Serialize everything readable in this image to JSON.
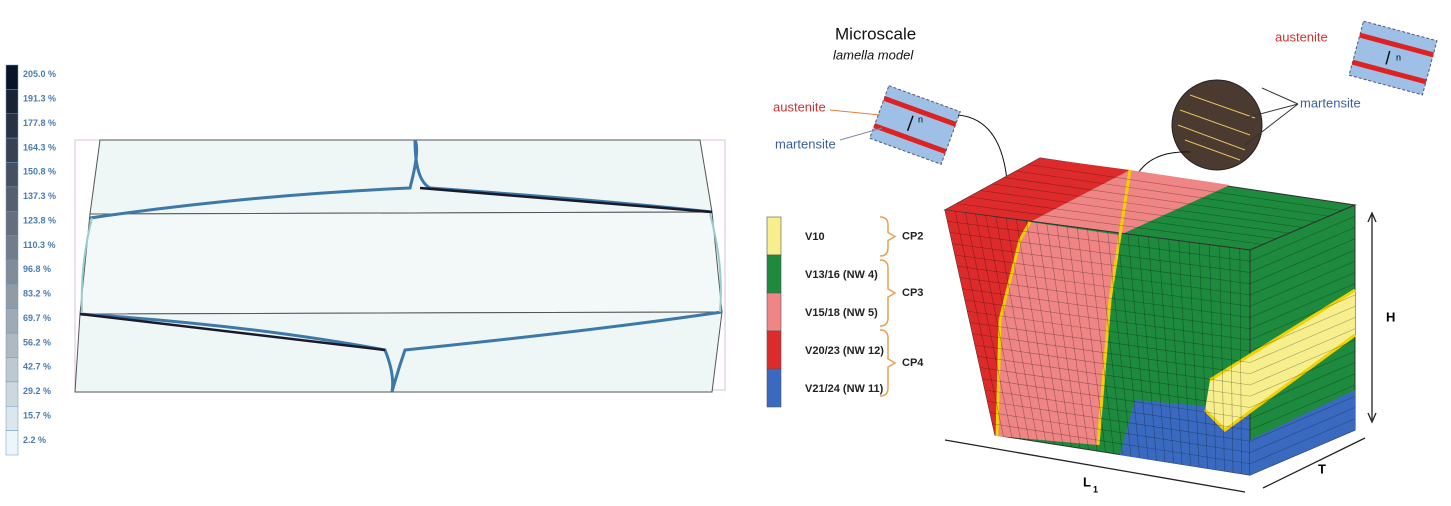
{
  "colorbar": {
    "labels": [
      "205.0 %",
      "191.3 %",
      "177.8 %",
      "164.3 %",
      "150.8 %",
      "137.3 %",
      "123.8 %",
      "110.3 %",
      "96.8 %",
      "83.2 %",
      "69.7 %",
      "56.2 %",
      "42.7 %",
      "29.2 %",
      "15.7 %",
      "2.2 %"
    ]
  },
  "microscale": {
    "title": "Microscale",
    "subtitle": "lamella model",
    "austenite": "austenite",
    "martensite": "martensite",
    "normal": "n"
  },
  "zoom": {
    "austenite": "austenite",
    "martensite": "martensite",
    "normal": "n"
  },
  "legend": {
    "items": [
      "V10",
      "V13/16 (NW 4)",
      "V15/18 (NW 5)",
      "V20/23 (NW 12)",
      "V21/24 (NW 11)"
    ],
    "groups": [
      "CP2",
      "CP3",
      "CP4"
    ]
  },
  "dimensions": {
    "height": "H",
    "thickness": "T",
    "length": "L",
    "length_sub": "1"
  }
}
